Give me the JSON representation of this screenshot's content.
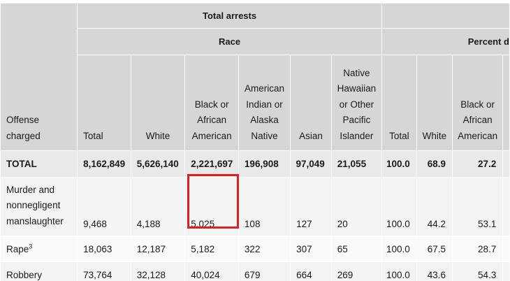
{
  "header": {
    "total_arrests": "Total arrests",
    "race": "Race",
    "percent_group": "Percent d"
  },
  "columns": {
    "offense": [
      "Offense",
      "charged"
    ],
    "total": "Total",
    "white": "White",
    "black": [
      "Black or",
      "African",
      "American"
    ],
    "american_indian": [
      "American",
      "Indian or",
      "Alaska",
      "Native"
    ],
    "asian": "Asian",
    "native_hawaiian": [
      "Native",
      "Hawaiian",
      "or Other",
      "Pacific",
      "Islander"
    ],
    "pct_total": "Total",
    "pct_white": "White",
    "pct_black": [
      "Black or",
      "African",
      "American"
    ]
  },
  "rows": {
    "total": {
      "offense": "TOTAL",
      "total": "8,162,849",
      "white": "5,626,140",
      "black": "2,221,697",
      "american_indian": "196,908",
      "asian": "97,049",
      "native_hawaiian": "21,055",
      "pct_total": "100.0",
      "pct_white": "68.9",
      "pct_black": "27.2"
    },
    "murder": {
      "offense": [
        "Murder and",
        "nonnegligent",
        "manslaughter"
      ],
      "total": "9,468",
      "white": "4,188",
      "black": "5,025",
      "american_indian": "108",
      "asian": "127",
      "native_hawaiian": "20",
      "pct_total": "100.0",
      "pct_white": "44.2",
      "pct_black": "53.1"
    },
    "rape": {
      "offense": "Rape",
      "footnote": "3",
      "total": "18,063",
      "white": "12,187",
      "black": "5,182",
      "american_indian": "322",
      "asian": "307",
      "native_hawaiian": "65",
      "pct_total": "100.0",
      "pct_white": "67.5",
      "pct_black": "28.7"
    },
    "robbery": {
      "offense": "Robbery",
      "total": "73,764",
      "white": "32,128",
      "black": "40,024",
      "american_indian": "679",
      "asian": "664",
      "native_hawaiian": "269",
      "pct_total": "100.0",
      "pct_white": "43.6",
      "pct_black": "54.3"
    }
  },
  "highlight_color": "#e0201b",
  "header_bg": "#d6d6d6"
}
